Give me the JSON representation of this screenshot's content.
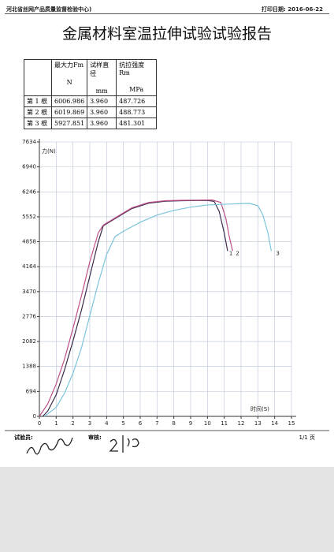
{
  "header": {
    "org": "河北省丝网产品质量监督检验中心)",
    "print_date": "打印日期: 2016-06-22"
  },
  "title": "金属材料室温拉伸试验试验报告",
  "table": {
    "columns": [
      "最大力Fm",
      "试样直径",
      "抗拉强度Rm"
    ],
    "units": [
      "N",
      "mm",
      "MPa"
    ],
    "rows": [
      [
        "第 1 根",
        "6006.986",
        "3.960",
        "487.726"
      ],
      [
        "第 2 根",
        "6019.869",
        "3.960",
        "488.773"
      ],
      [
        "第 3 根",
        "5927.851",
        "3.960",
        "481.301"
      ]
    ]
  },
  "chart": {
    "type": "line",
    "y_label": "力(N)",
    "x_label": "时间(S)",
    "xlim": [
      0,
      15
    ],
    "ylim": [
      0,
      7634
    ],
    "xticks": [
      0,
      1,
      2,
      3,
      4,
      5,
      6,
      7,
      8,
      9,
      10,
      11,
      12,
      13,
      14,
      15
    ],
    "yticks": [
      0,
      694,
      1388,
      2082,
      2776,
      3470,
      4164,
      4858,
      5552,
      6246,
      6940,
      7634
    ],
    "grid": true,
    "series": [
      {
        "name": "1",
        "color": "#3a2a4a",
        "x": [
          0.2,
          0.5,
          1,
          1.5,
          2,
          2.5,
          3,
          3.5,
          3.8,
          4.5,
          5.5,
          6.5,
          7.5,
          8.5,
          9.5,
          10,
          10.4,
          10.7,
          11,
          11.2
        ],
        "values": [
          0,
          150,
          600,
          1300,
          2100,
          2950,
          3900,
          4850,
          5300,
          5500,
          5780,
          5930,
          5985,
          6000,
          6005,
          6007,
          5980,
          5700,
          5100,
          4600
        ]
      },
      {
        "name": "2",
        "color": "#c0508a",
        "x": [
          0,
          0.5,
          1,
          1.5,
          2,
          2.5,
          3,
          3.5,
          3.8,
          4.5,
          5.5,
          6.5,
          7.5,
          8.5,
          9.5,
          10.3,
          10.8,
          11.1,
          11.3,
          11.5
        ],
        "values": [
          0,
          350,
          900,
          1600,
          2450,
          3350,
          4300,
          5100,
          5320,
          5520,
          5800,
          5950,
          6000,
          6010,
          6015,
          6020,
          5950,
          5500,
          5000,
          4600
        ]
      },
      {
        "name": "3",
        "color": "#7cc4dc",
        "x": [
          0.3,
          1,
          1.5,
          2,
          2.5,
          3,
          3.5,
          4,
          4.5,
          5,
          6,
          7,
          8,
          9,
          10,
          11,
          12,
          12.5,
          13,
          13.3,
          13.6,
          13.8
        ],
        "values": [
          0,
          250,
          650,
          1200,
          1900,
          2800,
          3700,
          4500,
          5000,
          5150,
          5400,
          5600,
          5730,
          5820,
          5880,
          5900,
          5920,
          5925,
          5860,
          5600,
          5100,
          4600
        ]
      }
    ]
  },
  "footer": {
    "tester": "试验员:",
    "reviewer": "审核:",
    "page": "1/1 页"
  }
}
